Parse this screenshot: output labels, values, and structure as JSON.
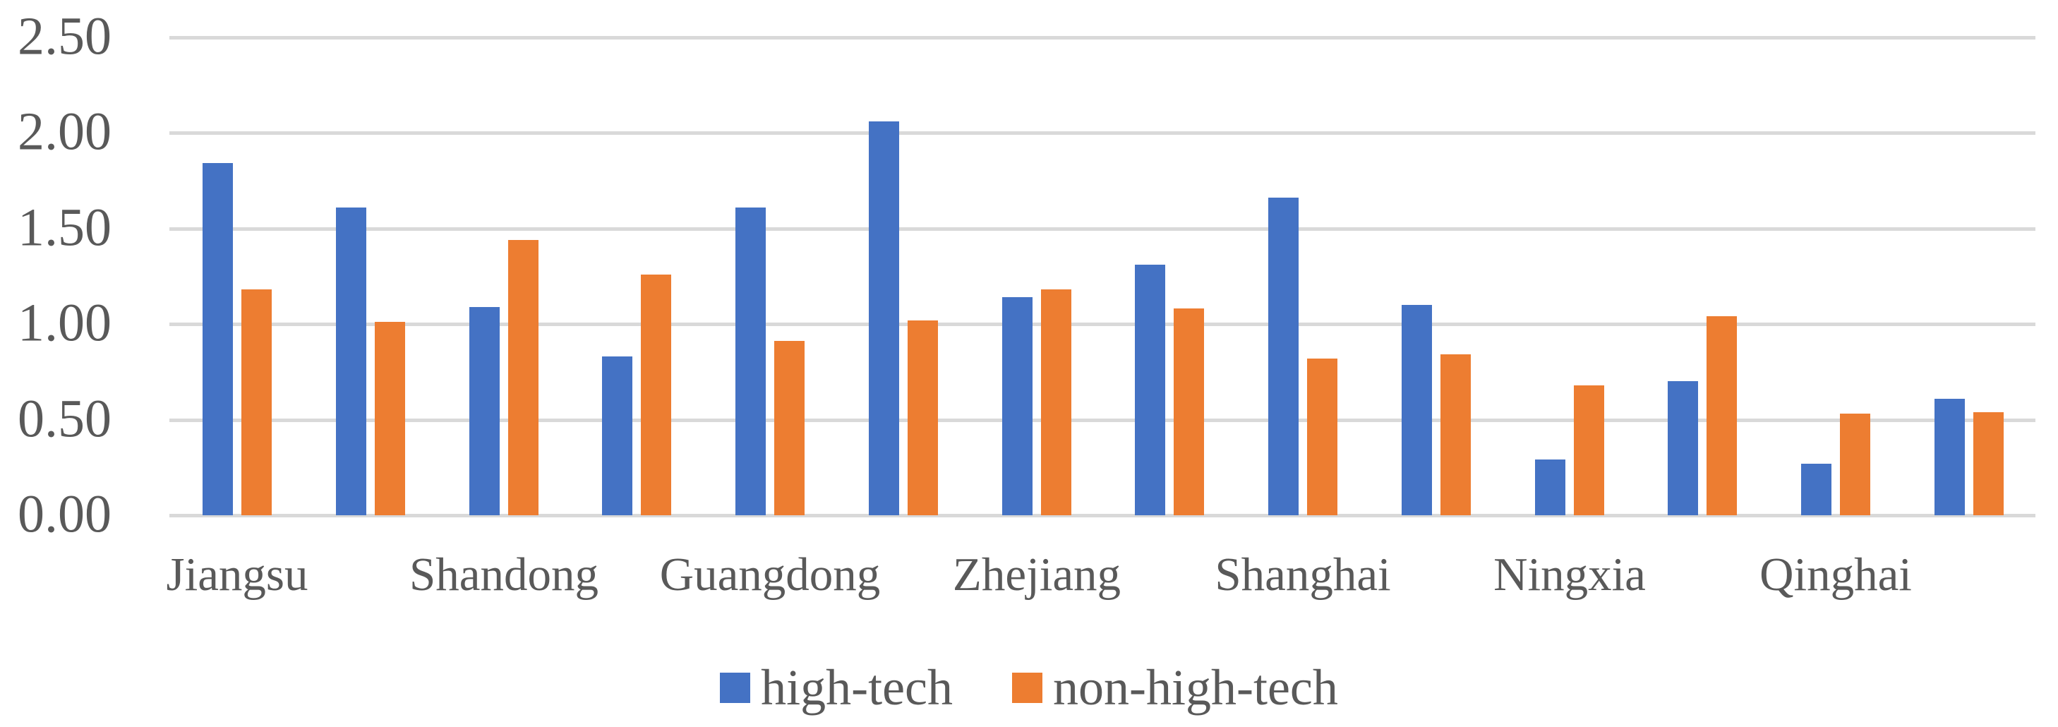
{
  "chart_data": {
    "type": "bar",
    "title": "",
    "categories": [
      "Jiangsu",
      "",
      "Shandong",
      "",
      "Guangdong",
      "",
      "Zhejiang",
      "",
      "Shanghai",
      "",
      "Ningxia",
      "",
      "Qinghai",
      ""
    ],
    "visible_category_labels": [
      "Jiangsu",
      "Shandong",
      "Guangdong",
      "Zhejiang",
      "Shanghai",
      "Ningxia",
      "Qinghai"
    ],
    "series": [
      {
        "name": "high-tech",
        "color": "#4472C4",
        "values": [
          1.84,
          1.61,
          1.09,
          0.83,
          1.61,
          2.06,
          1.14,
          1.31,
          1.66,
          1.1,
          0.29,
          0.7,
          0.27,
          0.61
        ]
      },
      {
        "name": "non-high-tech",
        "color": "#ED7D31",
        "values": [
          1.18,
          1.01,
          1.44,
          1.26,
          0.91,
          1.02,
          1.18,
          1.08,
          0.82,
          0.84,
          0.68,
          1.04,
          0.53,
          0.54
        ]
      }
    ],
    "y_axis": {
      "min": 0,
      "max": 2.5,
      "step": 0.5,
      "tick_labels": [
        "0.00",
        "0.50",
        "1.00",
        "1.50",
        "2.00",
        "2.50"
      ]
    },
    "x_axis": {
      "label_interval": 2
    },
    "grid": true,
    "legend_position": "bottom"
  },
  "colors": {
    "gridline": "#D9D9D9",
    "axis_text": "#595959",
    "background": "#FFFFFF"
  }
}
